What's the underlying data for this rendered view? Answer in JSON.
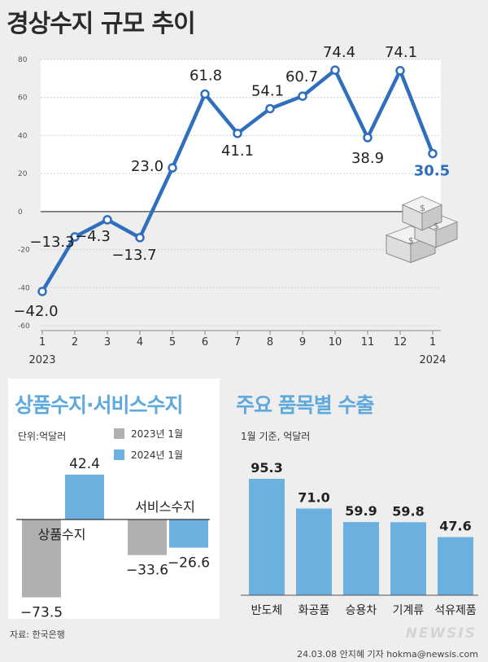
{
  "title": "경상수지 규모 추이",
  "chart_data": [
    {
      "type": "line",
      "x": [
        "1",
        "2",
        "3",
        "4",
        "5",
        "6",
        "7",
        "8",
        "9",
        "10",
        "11",
        "12",
        "1"
      ],
      "year_labels": {
        "start": "2023",
        "end": "2024"
      },
      "values": [
        -42.0,
        -13.3,
        -4.3,
        -13.7,
        23.0,
        61.8,
        41.1,
        54.1,
        60.7,
        74.4,
        38.9,
        74.1,
        30.5
      ],
      "value_labels": [
        "−42.0",
        "−13.3",
        "−4.3",
        "−13.7",
        "23.0",
        "61.8",
        "41.1",
        "54.1",
        "60.7",
        "74.4",
        "38.9",
        "74.1",
        "30.5"
      ],
      "y_ticks": [
        "80",
        "60",
        "40",
        "20",
        "0",
        "-20",
        "-40",
        "-60"
      ],
      "ylim": [
        -60,
        80
      ],
      "grid": true,
      "colors": {
        "line": "#2f6fbd",
        "last_label": "#2f6fbd"
      }
    },
    {
      "type": "bar",
      "title": "상품수지·서비스수지",
      "unit": "단위:억달러",
      "categories": [
        "상품수지",
        "서비스수지"
      ],
      "series": [
        {
          "name": "2023년 1월",
          "values": [
            -73.5,
            -33.6
          ],
          "labels": [
            "−73.5",
            "−33.6"
          ],
          "color": "#b0b0b0"
        },
        {
          "name": "2024년 1월",
          "values": [
            42.4,
            -26.6
          ],
          "labels": [
            "42.4",
            "−26.6"
          ],
          "color": "#6cb0e0"
        }
      ]
    },
    {
      "type": "bar",
      "title": "주요 품목별 수출",
      "unit": "1월 기준, 억달러",
      "categories": [
        "반도체",
        "화공품",
        "승용차",
        "기계류",
        "석유제품"
      ],
      "values": [
        95.3,
        71.0,
        59.9,
        59.8,
        47.6
      ],
      "value_labels": [
        "95.3",
        "71.0",
        "59.9",
        "59.8",
        "47.6"
      ],
      "color": "#6cb0e0"
    }
  ],
  "footer": {
    "source": "자료: 한국은행",
    "credit": "24.03.08 안지혜 기자 hokma@newsis.com",
    "logo": "NEWSIS"
  }
}
